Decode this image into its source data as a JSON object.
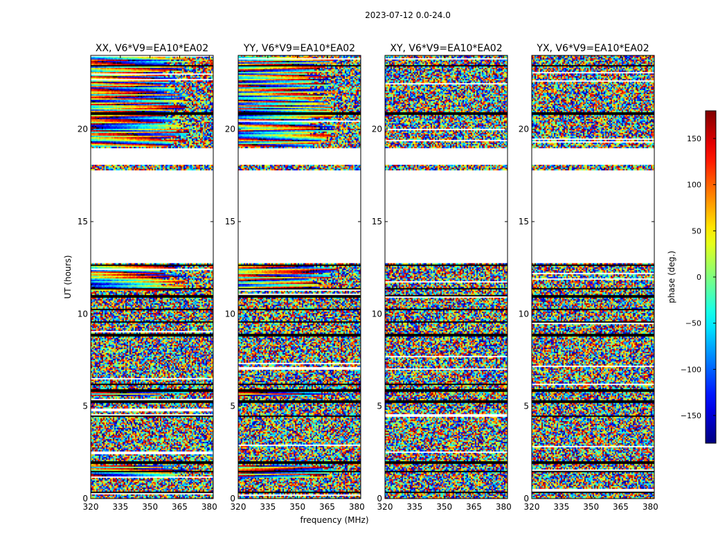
{
  "chart_data": {
    "type": "heatmap",
    "suptitle": "2023-07-12 0.0-24.0",
    "xlabel": "frequency (MHz)",
    "ylabel": "UT (hours)",
    "xlim": [
      320,
      382
    ],
    "ylim": [
      0,
      24
    ],
    "xticks": [
      "320",
      "335",
      "350",
      "365",
      "380"
    ],
    "xtick_values": [
      320,
      335,
      350,
      365,
      380
    ],
    "yticks": [
      "0",
      "5",
      "10",
      "15",
      "20"
    ],
    "ytick_values": [
      0,
      5,
      10,
      15,
      20
    ],
    "panels": [
      {
        "title": "XX, V6*V9=EA10*EA02",
        "coherent": true
      },
      {
        "title": "YY, V6*V9=EA10*EA02",
        "coherent": true
      },
      {
        "title": "XY, V6*V9=EA10*EA02",
        "coherent": false
      },
      {
        "title": "YX, V6*V9=EA10*EA02",
        "coherent": false
      }
    ],
    "no_data_ut_ranges": [
      [
        12.8,
        17.8
      ],
      [
        18.1,
        19.0
      ]
    ],
    "flagged_ut_lines": [
      0.4,
      1.5,
      2.0,
      4.5,
      5.3,
      5.9,
      6.2,
      8.9,
      9.6,
      10.3,
      11.0,
      11.4,
      12.7,
      19.0,
      20.9,
      23.5
    ],
    "colorbar": {
      "label": "phase (deg.)",
      "range": [
        -180,
        180
      ],
      "ticks": [
        "150",
        "100",
        "50",
        "0",
        "−50",
        "−100",
        "−150"
      ],
      "tick_values": [
        150,
        100,
        50,
        0,
        -50,
        -100,
        -150
      ],
      "colormap": "jet"
    }
  }
}
